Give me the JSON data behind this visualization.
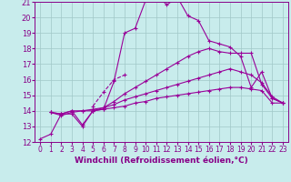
{
  "title": "",
  "xlabel": "Windchill (Refroidissement éolien,°C)",
  "ylabel": "",
  "xlim": [
    -0.5,
    23.5
  ],
  "ylim": [
    12,
    21
  ],
  "yticks": [
    12,
    13,
    14,
    15,
    16,
    17,
    18,
    19,
    20,
    21
  ],
  "xticks": [
    0,
    1,
    2,
    3,
    4,
    5,
    6,
    7,
    8,
    9,
    10,
    11,
    12,
    13,
    14,
    15,
    16,
    17,
    18,
    19,
    20,
    21,
    22,
    23
  ],
  "bg_color": "#c8ecec",
  "line_color": "#990099",
  "grid_color": "#a0c8c8",
  "curves": [
    {
      "x": [
        0,
        1,
        2,
        3,
        4,
        5,
        6,
        7,
        8,
        9,
        10,
        11,
        12,
        13,
        14,
        15,
        16,
        17,
        18,
        19,
        20,
        21,
        22,
        23
      ],
      "y": [
        12.2,
        12.5,
        13.8,
        13.8,
        13.0,
        14.0,
        14.1,
        15.9,
        19.0,
        19.3,
        21.1,
        21.5,
        20.8,
        21.3,
        20.1,
        19.8,
        18.5,
        18.3,
        18.1,
        17.5,
        15.5,
        16.5,
        14.8,
        14.5
      ]
    },
    {
      "x": [
        5,
        6,
        7,
        8
      ],
      "y": [
        14.3,
        15.2,
        16.0,
        16.3
      ],
      "dashed": true
    },
    {
      "x": [
        1,
        2,
        3,
        4,
        5,
        6,
        7,
        8,
        9,
        10,
        11,
        12,
        13,
        14,
        15,
        16,
        17,
        18,
        19,
        20,
        21,
        22,
        23
      ],
      "y": [
        13.9,
        13.8,
        14.0,
        13.1,
        14.0,
        14.2,
        14.6,
        15.1,
        15.5,
        15.9,
        16.3,
        16.7,
        17.1,
        17.5,
        17.8,
        18.0,
        17.8,
        17.7,
        17.7,
        17.7,
        15.7,
        14.8,
        14.5
      ]
    },
    {
      "x": [
        1,
        2,
        3,
        4,
        5,
        6,
        7,
        8,
        9,
        10,
        11,
        12,
        13,
        14,
        15,
        16,
        17,
        18,
        19,
        20,
        21,
        22,
        23
      ],
      "y": [
        13.9,
        13.8,
        14.0,
        14.0,
        14.1,
        14.2,
        14.4,
        14.7,
        14.9,
        15.1,
        15.3,
        15.5,
        15.7,
        15.9,
        16.1,
        16.3,
        16.5,
        16.7,
        16.5,
        16.3,
        15.8,
        14.9,
        14.5
      ]
    },
    {
      "x": [
        1,
        2,
        3,
        4,
        5,
        6,
        7,
        8,
        9,
        10,
        11,
        12,
        13,
        14,
        15,
        16,
        17,
        18,
        19,
        20,
        21,
        22,
        23
      ],
      "y": [
        13.9,
        13.7,
        13.9,
        14.0,
        14.0,
        14.1,
        14.2,
        14.3,
        14.5,
        14.6,
        14.8,
        14.9,
        15.0,
        15.1,
        15.2,
        15.3,
        15.4,
        15.5,
        15.5,
        15.4,
        15.3,
        14.5,
        14.5
      ]
    }
  ],
  "linewidth": 0.8,
  "xlabel_fontsize": 6.5,
  "tick_fontsize": 5.5,
  "tick_color": "#880088",
  "xlabel_color": "#880088"
}
